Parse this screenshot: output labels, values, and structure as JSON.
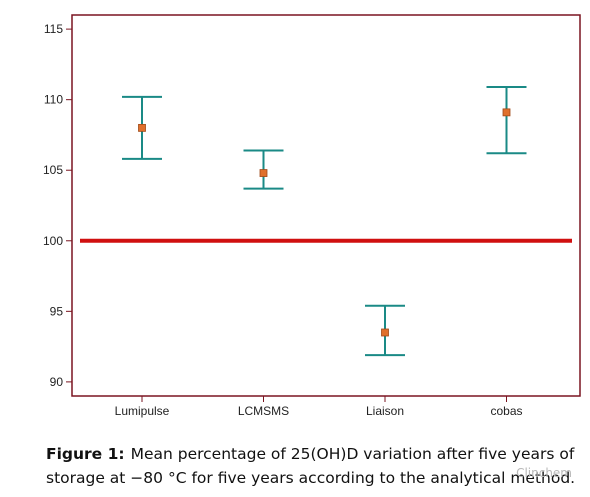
{
  "chart_data": {
    "type": "scatter",
    "categories": [
      "Lumipulse",
      "LCMSMS",
      "Liaison",
      "cobas"
    ],
    "series": [
      {
        "means": [
          108,
          104.8,
          93.5,
          109.1
        ],
        "lower": [
          105.8,
          103.7,
          91.9,
          106.2
        ],
        "upper": [
          110.2,
          106.4,
          95.4,
          110.9
        ]
      }
    ],
    "reference_line": 100,
    "ylim": [
      89,
      116
    ],
    "yticks": [
      "90",
      "95",
      "100",
      "105",
      "110",
      "115"
    ],
    "xlabel": "",
    "ylabel": "",
    "title": "",
    "grid": false,
    "colors": {
      "frame": "#7a1420",
      "errorbar": "#1a8a86",
      "marker": "#e0702c",
      "reference": "#d01010"
    }
  },
  "caption": {
    "label": "Figure 1:",
    "text": "Mean percentage of 25(OH)D variation after five years of storage at −80 °C for five years according to the analytical method."
  },
  "watermark": "Clinchem"
}
